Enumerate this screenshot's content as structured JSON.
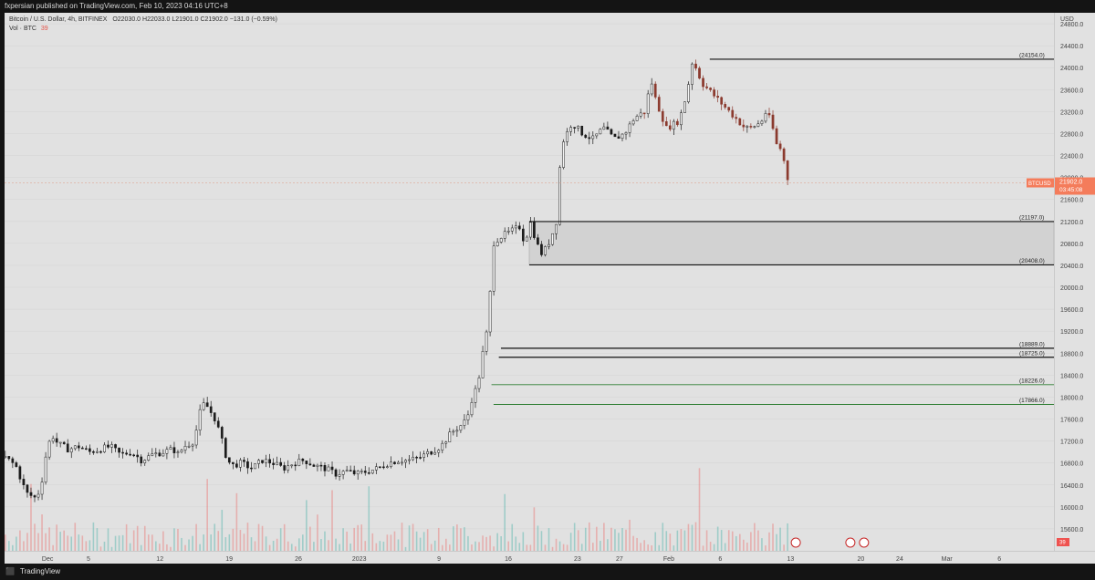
{
  "header": {
    "published": "fxpersian published on TradingView.com, Feb 10, 2023 04:16 UTC+8"
  },
  "legend": {
    "symbol_line": "Bitcoin / U.S. Dollar, 4h, BITFINEX",
    "ohlc": "O22030.0  H22033.0  L21901.0  C21902.0  −131.0 (−0.59%)",
    "vol_label": "Vol · BTC",
    "vol_value": "39"
  },
  "footer": {
    "brand": "TradingView"
  },
  "chart_data": {
    "type": "candlestick",
    "currency": "USD",
    "ylim": [
      15200,
      25000
    ],
    "y_ticks": [
      "24800.0",
      "24400.0",
      "24000.0",
      "23600.0",
      "23200.0",
      "22800.0",
      "22400.0",
      "22000.0",
      "21600.0",
      "21200.0",
      "20800.0",
      "20400.0",
      "20000.0",
      "19600.0",
      "19200.0",
      "18800.0",
      "18400.0",
      "18000.0",
      "17600.0",
      "17200.0",
      "16800.0",
      "16400.0",
      "16000.0",
      "15600.0"
    ],
    "x_ticks": [
      {
        "label": "Dec",
        "pos": 0.041
      },
      {
        "label": "5",
        "pos": 0.08
      },
      {
        "label": "12",
        "pos": 0.148
      },
      {
        "label": "19",
        "pos": 0.214
      },
      {
        "label": "26",
        "pos": 0.28
      },
      {
        "label": "2023",
        "pos": 0.338
      },
      {
        "label": "9",
        "pos": 0.414
      },
      {
        "label": "16",
        "pos": 0.48
      },
      {
        "label": "23",
        "pos": 0.546
      },
      {
        "label": "27",
        "pos": 0.586
      },
      {
        "label": "Feb",
        "pos": 0.633
      },
      {
        "label": "6",
        "pos": 0.682
      },
      {
        "label": "13",
        "pos": 0.749
      },
      {
        "label": "20",
        "pos": 0.816
      },
      {
        "label": "24",
        "pos": 0.853
      },
      {
        "label": "Mar",
        "pos": 0.898
      },
      {
        "label": "6",
        "pos": 0.948
      }
    ],
    "price_path": [
      [
        0,
        16900
      ],
      [
        0.01,
        16750
      ],
      [
        0.02,
        16250
      ],
      [
        0.03,
        16150
      ],
      [
        0.035,
        16500
      ],
      [
        0.04,
        17100
      ],
      [
        0.045,
        17300
      ],
      [
        0.05,
        17150
      ],
      [
        0.06,
        17050
      ],
      [
        0.07,
        17100
      ],
      [
        0.08,
        17000
      ],
      [
        0.09,
        17050
      ],
      [
        0.1,
        17100
      ],
      [
        0.11,
        16950
      ],
      [
        0.12,
        17000
      ],
      [
        0.13,
        16850
      ],
      [
        0.14,
        16950
      ],
      [
        0.15,
        17000
      ],
      [
        0.16,
        17050
      ],
      [
        0.165,
        16950
      ],
      [
        0.17,
        17100
      ],
      [
        0.18,
        17200
      ],
      [
        0.185,
        17700
      ],
      [
        0.19,
        17900
      ],
      [
        0.2,
        17600
      ],
      [
        0.205,
        17300
      ],
      [
        0.21,
        16950
      ],
      [
        0.215,
        16750
      ],
      [
        0.225,
        16800
      ],
      [
        0.235,
        16700
      ],
      [
        0.245,
        16850
      ],
      [
        0.255,
        16800
      ],
      [
        0.265,
        16700
      ],
      [
        0.275,
        16800
      ],
      [
        0.285,
        16850
      ],
      [
        0.295,
        16750
      ],
      [
        0.305,
        16700
      ],
      [
        0.315,
        16600
      ],
      [
        0.325,
        16650
      ],
      [
        0.335,
        16600
      ],
      [
        0.345,
        16650
      ],
      [
        0.355,
        16700
      ],
      [
        0.365,
        16800
      ],
      [
        0.375,
        16850
      ],
      [
        0.385,
        16850
      ],
      [
        0.395,
        16900
      ],
      [
        0.405,
        17000
      ],
      [
        0.415,
        17100
      ],
      [
        0.425,
        17350
      ],
      [
        0.435,
        17500
      ],
      [
        0.44,
        17600
      ],
      [
        0.445,
        18000
      ],
      [
        0.45,
        18200
      ],
      [
        0.455,
        18800
      ],
      [
        0.46,
        19300
      ],
      [
        0.465,
        20800
      ],
      [
        0.47,
        20900
      ],
      [
        0.48,
        21000
      ],
      [
        0.49,
        21100
      ],
      [
        0.495,
        20800
      ],
      [
        0.5,
        21200
      ],
      [
        0.505,
        20900
      ],
      [
        0.51,
        20600
      ],
      [
        0.515,
        20700
      ],
      [
        0.52,
        20900
      ],
      [
        0.525,
        21200
      ],
      [
        0.53,
        22600
      ],
      [
        0.535,
        22800
      ],
      [
        0.54,
        23000
      ],
      [
        0.55,
        22800
      ],
      [
        0.56,
        22700
      ],
      [
        0.57,
        22900
      ],
      [
        0.58,
        22700
      ],
      [
        0.59,
        22800
      ],
      [
        0.6,
        23100
      ],
      [
        0.61,
        23200
      ],
      [
        0.615,
        23800
      ],
      [
        0.62,
        23400
      ],
      [
        0.63,
        22900
      ],
      [
        0.64,
        23000
      ],
      [
        0.645,
        23200
      ],
      [
        0.65,
        23600
      ],
      [
        0.655,
        24150
      ],
      [
        0.66,
        23900
      ],
      [
        0.665,
        23700
      ],
      [
        0.67,
        23600
      ],
      [
        0.68,
        23400
      ],
      [
        0.69,
        23200
      ],
      [
        0.7,
        23000
      ],
      [
        0.705,
        22900
      ],
      [
        0.71,
        22900
      ],
      [
        0.72,
        23000
      ],
      [
        0.725,
        23200
      ],
      [
        0.73,
        23000
      ],
      [
        0.735,
        22600
      ],
      [
        0.74,
        22500
      ],
      [
        0.745,
        22000
      ],
      [
        0.748,
        21902
      ]
    ],
    "last_price": "21902.0",
    "last_label": "BTCUSD",
    "countdown": "03:45:08",
    "volume_last": "39",
    "horizontal_levels": [
      {
        "label": "(24154.0)",
        "value": 24154,
        "color": "#111111",
        "kind": "black"
      },
      {
        "label": "(21197.0)",
        "value": 21197,
        "color": "#111111",
        "kind": "black"
      },
      {
        "label": "(20408.0)",
        "value": 20408,
        "color": "#111111",
        "kind": "black"
      },
      {
        "label": "(18889.0)",
        "value": 18889,
        "color": "#111111",
        "kind": "black"
      },
      {
        "label": "(18725.0)",
        "value": 18725,
        "color": "#111111",
        "kind": "black"
      },
      {
        "label": "(18226.0)",
        "value": 18226,
        "color": "#2e7d32",
        "kind": "green"
      },
      {
        "label": "(17866.0)",
        "value": 17866,
        "color": "#2e7d32",
        "kind": "green"
      }
    ],
    "zone": {
      "top": 21197,
      "bottom": 20408
    },
    "colors": {
      "up": "#26a69a",
      "down": "#ef5350",
      "candle": "#1b1b1b",
      "candle_red": "#8b3a2e",
      "price_tag": "#f47c5b",
      "grid": "#d4d4d4"
    }
  }
}
